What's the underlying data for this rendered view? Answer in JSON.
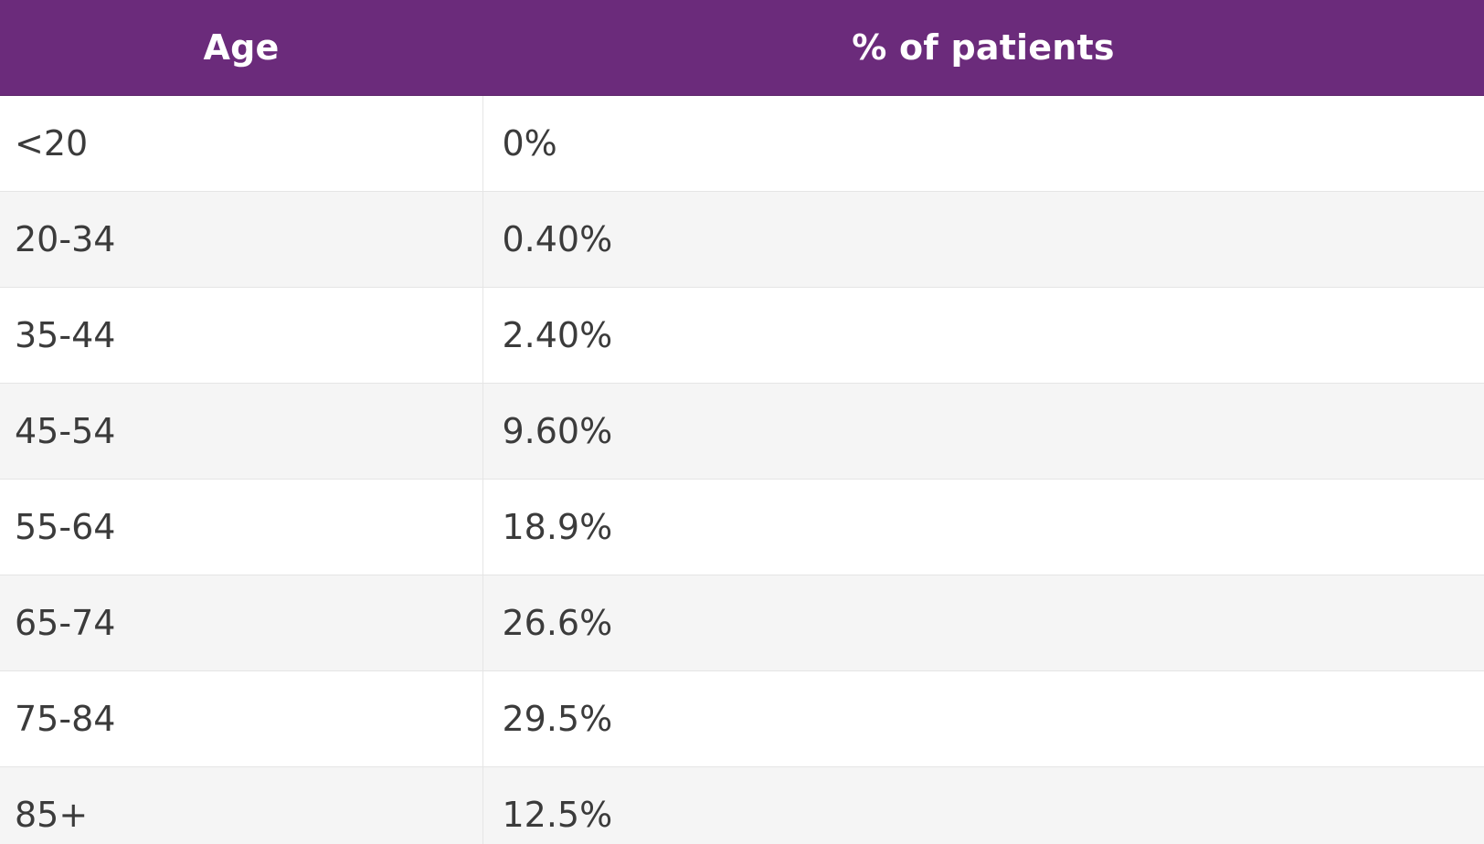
{
  "table": {
    "headers": [
      "Age",
      "% of patients"
    ],
    "rows": [
      [
        "<20",
        "0%"
      ],
      [
        "20-34",
        "0.40%"
      ],
      [
        "35-44",
        "2.40%"
      ],
      [
        "45-54",
        "9.60%"
      ],
      [
        "55-64",
        "18.9%"
      ],
      [
        "65-74",
        "26.6%"
      ],
      [
        "75-84",
        "29.5%"
      ],
      [
        "85+",
        "12.5%"
      ]
    ]
  },
  "colors": {
    "header_bg": "#6b2b7b",
    "header_text": "#ffffff",
    "row_alt_bg": "#f5f5f5",
    "cell_text": "#3b3b3b"
  }
}
